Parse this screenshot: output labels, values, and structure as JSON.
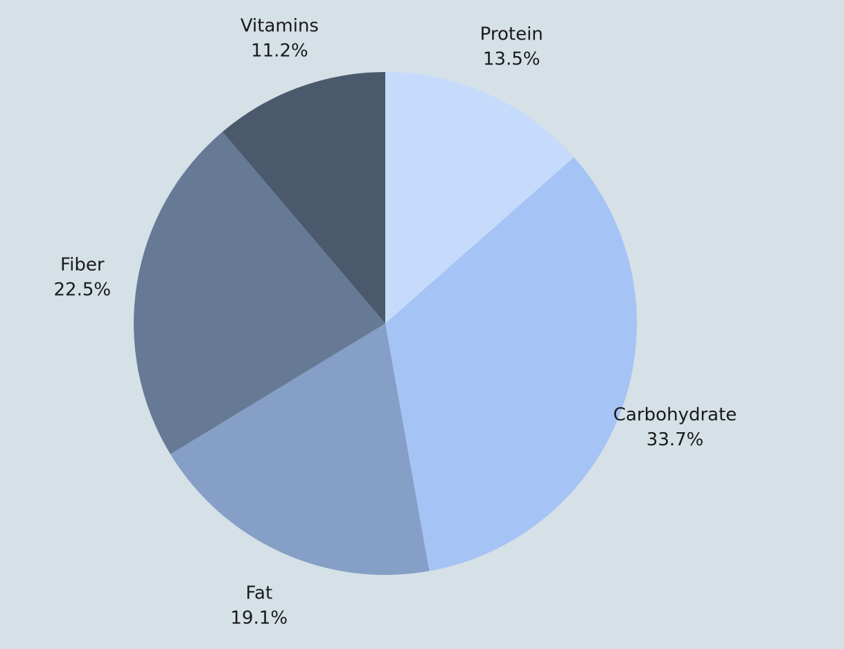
{
  "chart_data": {
    "type": "pie",
    "title": "",
    "slices": [
      {
        "label": "Protein",
        "value": 13.5,
        "display": "13.5%",
        "color": "#c6dbfb"
      },
      {
        "label": "Carbohydrate",
        "value": 33.7,
        "display": "33.7%",
        "color": "#a5c3f4"
      },
      {
        "label": "Fat",
        "value": 19.1,
        "display": "19.1%",
        "color": "#859fc6"
      },
      {
        "label": "Fiber",
        "value": 22.5,
        "display": "22.5%",
        "color": "#667995"
      },
      {
        "label": "Vitamins",
        "value": 11.2,
        "display": "11.2%",
        "color": "#4b596c"
      }
    ],
    "start_angle": "12 o'clock",
    "direction": "clockwise",
    "legend": "none"
  },
  "colors": {
    "background": "#d5e0e7",
    "label_text": "#1a1a1a"
  }
}
